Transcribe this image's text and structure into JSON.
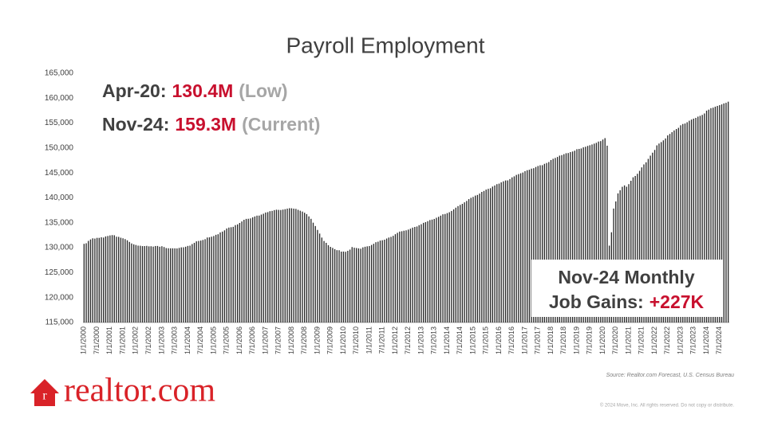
{
  "chart_data": {
    "type": "bar",
    "title": "Payroll Employment",
    "categories": [
      "1/1/2000",
      null,
      null,
      null,
      null,
      null,
      "7/1/2000",
      null,
      null,
      null,
      null,
      null,
      "1/1/2001",
      null,
      null,
      null,
      null,
      null,
      "7/1/2001",
      null,
      null,
      null,
      null,
      null,
      "1/1/2002",
      null,
      null,
      null,
      null,
      null,
      "7/1/2002",
      null,
      null,
      null,
      null,
      null,
      "1/1/2003",
      null,
      null,
      null,
      null,
      null,
      "7/1/2003",
      null,
      null,
      null,
      null,
      null,
      "1/1/2004",
      null,
      null,
      null,
      null,
      null,
      "7/1/2004",
      null,
      null,
      null,
      null,
      null,
      "1/1/2005",
      null,
      null,
      null,
      null,
      null,
      "7/1/2005",
      null,
      null,
      null,
      null,
      null,
      "1/1/2006",
      null,
      null,
      null,
      null,
      null,
      "7/1/2006",
      null,
      null,
      null,
      null,
      null,
      "1/1/2007",
      null,
      null,
      null,
      null,
      null,
      "7/1/2007",
      null,
      null,
      null,
      null,
      null,
      "1/1/2008",
      null,
      null,
      null,
      null,
      null,
      "7/1/2008",
      null,
      null,
      null,
      null,
      null,
      "1/1/2009",
      null,
      null,
      null,
      null,
      null,
      "7/1/2009",
      null,
      null,
      null,
      null,
      null,
      "1/1/2010",
      null,
      null,
      null,
      null,
      null,
      "7/1/2010",
      null,
      null,
      null,
      null,
      null,
      "1/1/2011",
      null,
      null,
      null,
      null,
      null,
      "7/1/2011",
      null,
      null,
      null,
      null,
      null,
      "1/1/2012",
      null,
      null,
      null,
      null,
      null,
      "7/1/2012",
      null,
      null,
      null,
      null,
      null,
      "1/1/2013",
      null,
      null,
      null,
      null,
      null,
      "7/1/2013",
      null,
      null,
      null,
      null,
      null,
      "1/1/2014",
      null,
      null,
      null,
      null,
      null,
      "7/1/2014",
      null,
      null,
      null,
      null,
      null,
      "1/1/2015",
      null,
      null,
      null,
      null,
      null,
      "7/1/2015",
      null,
      null,
      null,
      null,
      null,
      "1/1/2016",
      null,
      null,
      null,
      null,
      null,
      "7/1/2016",
      null,
      null,
      null,
      null,
      null,
      "1/1/2017",
      null,
      null,
      null,
      null,
      null,
      "7/1/2017",
      null,
      null,
      null,
      null,
      null,
      "1/1/2018",
      null,
      null,
      null,
      null,
      null,
      "7/1/2018",
      null,
      null,
      null,
      null,
      null,
      "1/1/2019",
      null,
      null,
      null,
      null,
      null,
      "7/1/2019",
      null,
      null,
      null,
      null,
      null,
      "1/1/2020",
      null,
      null,
      null,
      null,
      null,
      "7/1/2020",
      null,
      null,
      null,
      null,
      null,
      "1/1/2021",
      null,
      null,
      null,
      null,
      null,
      "7/1/2021",
      null,
      null,
      null,
      null,
      null,
      "1/1/2022",
      null,
      null,
      null,
      null,
      null,
      "7/1/2022",
      null,
      null,
      null,
      null,
      null,
      "1/1/2023",
      null,
      null,
      null,
      null,
      null,
      "7/1/2023",
      null,
      null,
      null,
      null,
      null,
      "1/1/2024",
      null,
      null,
      null,
      null,
      null,
      "7/1/2024",
      null,
      null,
      null,
      null
    ],
    "values": [
      130781,
      130894,
      131370,
      131659,
      131887,
      131837,
      131981,
      131982,
      132092,
      132043,
      132263,
      132357,
      132469,
      132530,
      132500,
      132210,
      132178,
      132011,
      131891,
      131731,
      131489,
      131164,
      130858,
      130679,
      130550,
      130422,
      130399,
      130325,
      130330,
      130373,
      130278,
      130295,
      130230,
      130343,
      130354,
      130203,
      130297,
      130142,
      129930,
      129892,
      129884,
      129885,
      129880,
      129858,
      129962,
      130073,
      130090,
      130201,
      130360,
      130421,
      130735,
      130983,
      131282,
      131360,
      131432,
      131559,
      131715,
      132050,
      132086,
      132216,
      132353,
      132592,
      132709,
      133069,
      133236,
      133487,
      133860,
      134043,
      134112,
      134195,
      134535,
      134688,
      134965,
      135272,
      135597,
      135785,
      135809,
      135884,
      136097,
      136277,
      136438,
      136448,
      136650,
      136822,
      137061,
      137141,
      137331,
      137392,
      137545,
      137627,
      137593,
      137571,
      137650,
      137735,
      137842,
      137926,
      137914,
      137843,
      137794,
      137605,
      137423,
      137254,
      137020,
      136746,
      136287,
      135801,
      135021,
      134355,
      133570,
      132837,
      132034,
      131348,
      130982,
      130505,
      130173,
      129960,
      129719,
      129508,
      129495,
      129220,
      129234,
      129186,
      129383,
      129623,
      130132,
      130006,
      129941,
      129869,
      129804,
      130071,
      130198,
      130277,
      130340,
      130559,
      130791,
      131106,
      131207,
      131436,
      131502,
      131610,
      131846,
      132043,
      132178,
      132383,
      132713,
      132991,
      133237,
      133307,
      133413,
      133488,
      133640,
      133822,
      134035,
      134170,
      134262,
      134527,
      134710,
      134991,
      135132,
      135329,
      135551,
      135643,
      135777,
      136015,
      136204,
      136434,
      136707,
      136765,
      136948,
      137122,
      137382,
      137702,
      138037,
      138352,
      138597,
      138803,
      139108,
      139384,
      139753,
      140012,
      140196,
      140459,
      140589,
      140865,
      141197,
      141393,
      141666,
      141817,
      141941,
      142268,
      142491,
      142752,
      142864,
      143113,
      143325,
      143497,
      143505,
      143774,
      144112,
      144323,
      144611,
      144769,
      144934,
      145088,
      145351,
      145548,
      145648,
      145865,
      145957,
      146198,
      146397,
      146541,
      146559,
      146830,
      147002,
      147191,
      147592,
      147842,
      148012,
      148208,
      148471,
      148579,
      148768,
      148956,
      149000,
      149185,
      149302,
      149465,
      149768,
      149825,
      149916,
      150143,
      150259,
      150425,
      150560,
      150714,
      150883,
      151047,
      151301,
      151393,
      151703,
      151985,
      150473,
      130421,
      133104,
      137860,
      139286,
      140902,
      141539,
      142221,
      142507,
      142242,
      142757,
      143431,
      144129,
      144397,
      144838,
      145427,
      146119,
      146712,
      147135,
      147824,
      148476,
      149067,
      149621,
      150537,
      150902,
      151193,
      151542,
      151922,
      152536,
      152829,
      153178,
      153534,
      153814,
      154053,
      154562,
      154820,
      154916,
      155176,
      155481,
      155710,
      155894,
      156053,
      156299,
      156463,
      156645,
      156935,
      157500,
      157700,
      158000,
      158100,
      158300,
      158450,
      158600,
      158750,
      158950,
      159073,
      159300
    ],
    "color": "#2b2b2b",
    "ylim": [
      115000,
      165000
    ],
    "yticks": [
      {
        "value": 115000,
        "label": "115,000"
      },
      {
        "value": 120000,
        "label": "120,000"
      },
      {
        "value": 125000,
        "label": "125,000"
      },
      {
        "value": 130000,
        "label": "130,000"
      },
      {
        "value": 135000,
        "label": "135,000"
      },
      {
        "value": 140000,
        "label": "140,000"
      },
      {
        "value": 145000,
        "label": "145,000"
      },
      {
        "value": 150000,
        "label": "150,000"
      },
      {
        "value": 155000,
        "label": "155,000"
      },
      {
        "value": 160000,
        "label": "160,000"
      },
      {
        "value": 165000,
        "label": "165,000"
      }
    ],
    "grid": false,
    "annotations": [
      {
        "parts": [
          "Apr-20:",
          "130.4M",
          "(Low)"
        ]
      },
      {
        "parts": [
          "Nov-24:",
          "159.3M",
          "(Current)"
        ]
      }
    ],
    "callout": {
      "lines": [
        "Nov-24 Monthly",
        "Job Gains:",
        "+227K"
      ]
    },
    "source": "Source: Realtor.com Forecast, U.S. Census Bureau"
  },
  "footer": {
    "logo": "realtor.com",
    "copyright": "© 2024 Move, Inc. All rights reserved. Do not copy or distribute."
  }
}
